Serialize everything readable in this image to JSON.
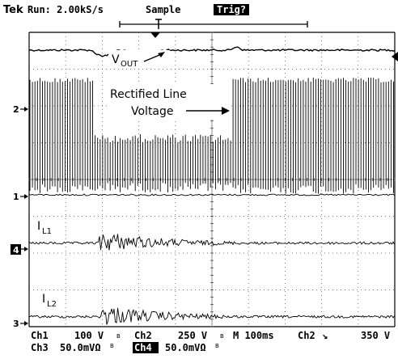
{
  "header": {
    "brand": "Tek",
    "run_state": "Run: 2.00kS/s",
    "acq_mode": "Sample",
    "trigger_status": "Trig?"
  },
  "annotations": {
    "vout_main": "V",
    "vout_sub": "OUT",
    "rectified_line1": "Rectified Line",
    "rectified_line2": "Voltage",
    "il1_main": "I",
    "il1_sub": "L1",
    "il2_main": "I",
    "il2_sub": "L2"
  },
  "channel_markers": {
    "ch2": "2",
    "ch1": "1",
    "ch4": "4",
    "ch3": "3"
  },
  "status_bar": {
    "row1": {
      "ch1_label": "Ch1",
      "ch1_scale": "100 V",
      "ch1_bw": "B",
      "ch2_label": "Ch2",
      "ch2_scale": "250 V",
      "ch2_bw": "B",
      "timebase": "M 100ms",
      "trig_source": "Ch2",
      "trig_slope": "↘",
      "trig_level": "350 V"
    },
    "row2": {
      "ch3_label": "Ch3",
      "ch3_scale": "50.0mVΩ",
      "ch3_bw": "B",
      "ch4_label": "Ch4",
      "ch4_scale": "50.0mVΩ",
      "ch4_bw": "B"
    }
  },
  "colors": {
    "background": "#ffffff",
    "trace": "#000000",
    "grid": "#555555"
  }
}
